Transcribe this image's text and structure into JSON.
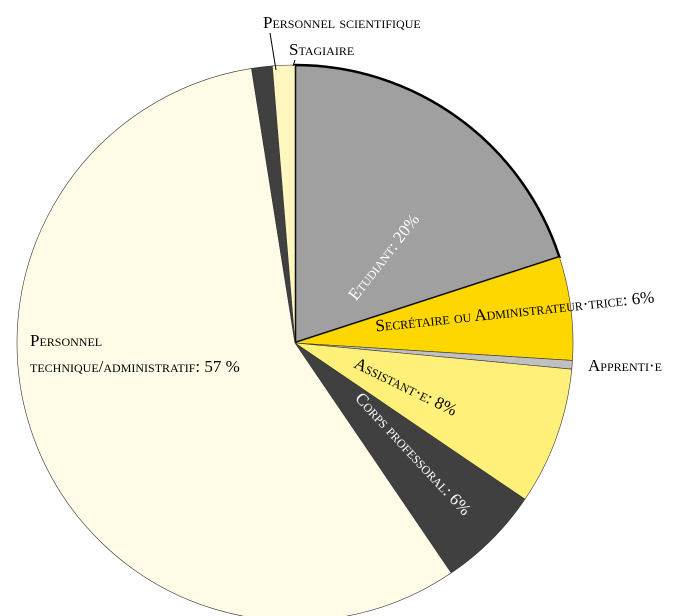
{
  "chart_data": {
    "type": "pie",
    "labels": [
      "Etudiant: 20%",
      "Secrétaire ou Administrateur·trice: 6%",
      "Apprenti·e",
      "Assistant·e: 8%",
      "Corps professoral: 6%",
      [
        "Personnel",
        "technique/administratif: 57 %"
      ],
      "Personnel scientifique",
      "Stagiaire"
    ],
    "values": [
      20,
      6,
      0.5,
      8,
      6,
      57,
      1.2,
      1.3
    ],
    "colors": [
      "#a0a0a0",
      "#ffd700",
      "#c0c0c0",
      "#fff07a",
      "#404040",
      "#fffbe6",
      "#404040",
      "#fff6c0"
    ]
  }
}
